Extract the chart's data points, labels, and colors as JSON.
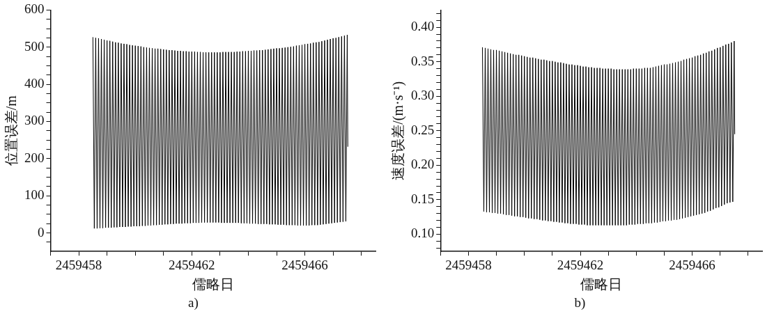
{
  "chart_data": [
    {
      "type": "line",
      "xlabel": "儒略日",
      "ylabel": "位置误差/m",
      "annotations": [
        "a)"
      ],
      "color": "#000000",
      "xlim": [
        2459457,
        2459468.5
      ],
      "xticks": [
        {
          "value": 2459457,
          "label": null
        },
        {
          "value": 2459458,
          "label": "2459458"
        },
        {
          "value": 2459459,
          "label": null
        },
        {
          "value": 2459460,
          "label": null
        },
        {
          "value": 2459461,
          "label": null
        },
        {
          "value": 2459462,
          "label": "2459462"
        },
        {
          "value": 2459463,
          "label": null
        },
        {
          "value": 2459464,
          "label": null
        },
        {
          "value": 2459465,
          "label": null
        },
        {
          "value": 2459466,
          "label": "2459466"
        },
        {
          "value": 2459467,
          "label": null
        },
        {
          "value": 2459468,
          "label": null
        }
      ],
      "ylim": [
        -50,
        600
      ],
      "yticks": [
        {
          "value": -25,
          "label": null
        },
        0,
        {
          "value": 25,
          "label": null
        },
        {
          "value": 50,
          "label": null
        },
        {
          "value": 75,
          "label": null
        },
        100,
        {
          "value": 125,
          "label": null
        },
        {
          "value": 150,
          "label": null
        },
        {
          "value": 175,
          "label": null
        },
        200,
        {
          "value": 225,
          "label": null
        },
        {
          "value": 250,
          "label": null
        },
        {
          "value": 275,
          "label": null
        },
        300,
        {
          "value": 325,
          "label": null
        },
        {
          "value": 350,
          "label": null
        },
        {
          "value": 375,
          "label": null
        },
        400,
        {
          "value": 425,
          "label": null
        },
        {
          "value": 450,
          "label": null
        },
        {
          "value": 475,
          "label": null
        },
        500,
        {
          "value": 525,
          "label": null
        },
        {
          "value": 550,
          "label": null
        },
        {
          "value": 575,
          "label": null
        },
        600
      ],
      "x": [
        2459458.5,
        2459458.55,
        2459458.6,
        2459458.65,
        2459458.7,
        2459458.75,
        2459458.8,
        2459458.85,
        2459458.9,
        2459458.95,
        2459459,
        2459459.05,
        2459459.1,
        2459459.15,
        2459459.2,
        2459459.25,
        2459459.3,
        2459459.35,
        2459459.4,
        2459459.45,
        2459459.5,
        2459459.55,
        2459459.6,
        2459459.65,
        2459459.7,
        2459459.75,
        2459459.8,
        2459459.85,
        2459459.9,
        2459459.95,
        2459460,
        2459460.05,
        2459460.1,
        2459460.15,
        2459460.2,
        2459460.25,
        2459460.3,
        2459460.35,
        2459460.4,
        2459460.45,
        2459460.5,
        2459460.55,
        2459460.6,
        2459460.65,
        2459460.7,
        2459460.75,
        2459460.8,
        2459460.85,
        2459460.9,
        2459460.95,
        2459461,
        2459461.05,
        2459461.1,
        2459461.15,
        2459461.2,
        2459461.25,
        2459461.3,
        2459461.35,
        2459461.4,
        2459461.45,
        2459461.5,
        2459461.55,
        2459461.6,
        2459461.65,
        2459461.7,
        2459461.75,
        2459461.8,
        2459461.85,
        2459461.9,
        2459461.95,
        2459462,
        2459462.05,
        2459462.1,
        2459462.15,
        2459462.2,
        2459462.25,
        2459462.3,
        2459462.35,
        2459462.4,
        2459462.45,
        2459462.5,
        2459462.55,
        2459462.6,
        2459462.65,
        2459462.7,
        2459462.75,
        2459462.8,
        2459462.85,
        2459462.9,
        2459462.95,
        2459463,
        2459463.05,
        2459463.1,
        2459463.15,
        2459463.2,
        2459463.25,
        2459463.3,
        2459463.35,
        2459463.4,
        2459463.45,
        2459463.5,
        2459463.55,
        2459463.6,
        2459463.65,
        2459463.7,
        2459463.75,
        2459463.8,
        2459463.85,
        2459463.9,
        2459463.95,
        2459464,
        2459464.05,
        2459464.1,
        2459464.15,
        2459464.2,
        2459464.25,
        2459464.3,
        2459464.35,
        2459464.4,
        2459464.45,
        2459464.5,
        2459464.55,
        2459464.6,
        2459464.65,
        2459464.7,
        2459464.75,
        2459464.8,
        2459464.85,
        2459464.9,
        2459464.95,
        2459465,
        2459465.05,
        2459465.1,
        2459465.15,
        2459465.2,
        2459465.25,
        2459465.3,
        2459465.35,
        2459465.4,
        2459465.45,
        2459465.5,
        2459465.55,
        2459465.6,
        2459465.65,
        2459465.7,
        2459465.75,
        2459465.8,
        2459465.85,
        2459465.9,
        2459465.95,
        2459466,
        2459466.05,
        2459466.1,
        2459466.15,
        2459466.2,
        2459466.25,
        2459466.3,
        2459466.35,
        2459466.4,
        2459466.45,
        2459466.5,
        2459466.55,
        2459466.6,
        2459466.65,
        2459466.7,
        2459466.75,
        2459466.8,
        2459466.85,
        2459466.9,
        2459466.95,
        2459467,
        2459467.05,
        2459467.1,
        2459467.15,
        2459467.2,
        2459467.25,
        2459467.3,
        2459467.35,
        2459467.4,
        2459467.45,
        2459467.5,
        2459467.52
      ],
      "values": [
        527,
        12,
        525,
        12,
        524,
        13,
        522,
        13,
        520,
        14,
        518,
        14,
        517,
        14,
        515,
        15,
        513,
        15,
        512,
        16,
        510,
        16,
        509,
        16,
        508,
        17,
        506,
        17,
        505,
        18,
        504,
        18,
        503,
        18,
        502,
        19,
        500,
        19,
        499,
        20,
        498,
        20,
        497,
        21,
        496,
        21,
        496,
        22,
        495,
        22,
        494,
        23,
        493,
        23,
        492,
        24,
        492,
        24,
        491,
        25,
        490,
        25,
        490,
        25,
        489,
        26,
        489,
        26,
        488,
        26,
        488,
        27,
        488,
        27,
        487,
        27,
        487,
        28,
        486,
        28,
        486,
        28,
        486,
        28,
        486,
        28,
        486,
        28,
        486,
        28,
        486,
        27,
        487,
        27,
        487,
        27,
        487,
        27,
        487,
        27,
        487,
        27,
        488,
        27,
        488,
        26,
        489,
        26,
        489,
        26,
        490,
        25,
        490,
        25,
        491,
        25,
        491,
        24,
        492,
        24,
        492,
        24,
        493,
        24,
        494,
        23,
        495,
        23,
        496,
        23,
        497,
        22,
        497,
        22,
        498,
        22,
        499,
        21,
        500,
        21,
        501,
        21,
        502,
        21,
        504,
        20,
        505,
        20,
        506,
        20,
        508,
        20,
        509,
        20,
        510,
        21,
        512,
        21,
        513,
        21,
        514,
        22,
        516,
        23,
        518,
        24,
        520,
        25,
        522,
        26,
        524,
        27,
        525,
        28,
        527,
        29,
        529,
        30,
        531,
        31,
        533,
        232
      ]
    },
    {
      "type": "line",
      "xlabel": "儒略日",
      "ylabel": "速度误差/(m·s⁻¹)",
      "annotations": [
        "b)"
      ],
      "color": "#000000",
      "xlim": [
        2459457,
        2459468.5
      ],
      "xticks": [
        {
          "value": 2459457,
          "label": null
        },
        {
          "value": 2459458,
          "label": "2459458"
        },
        {
          "value": 2459459,
          "label": null
        },
        {
          "value": 2459460,
          "label": null
        },
        {
          "value": 2459461,
          "label": null
        },
        {
          "value": 2459462,
          "label": "2459462"
        },
        {
          "value": 2459463,
          "label": null
        },
        {
          "value": 2459464,
          "label": null
        },
        {
          "value": 2459465,
          "label": null
        },
        {
          "value": 2459466,
          "label": "2459466"
        },
        {
          "value": 2459467,
          "label": null
        },
        {
          "value": 2459468,
          "label": null
        }
      ],
      "ylim": [
        0.075,
        0.425
      ],
      "yticks": [
        {
          "value": 0.08,
          "label": null
        },
        {
          "value": 0.09,
          "label": null
        },
        {
          "value": 0.1,
          "label": "0.10"
        },
        {
          "value": 0.11,
          "label": null
        },
        {
          "value": 0.12,
          "label": null
        },
        {
          "value": 0.13,
          "label": null
        },
        {
          "value": 0.14,
          "label": null
        },
        {
          "value": 0.15,
          "label": "0.15"
        },
        {
          "value": 0.16,
          "label": null
        },
        {
          "value": 0.17,
          "label": null
        },
        {
          "value": 0.18,
          "label": null
        },
        {
          "value": 0.19,
          "label": null
        },
        {
          "value": 0.2,
          "label": "0.20"
        },
        {
          "value": 0.21,
          "label": null
        },
        {
          "value": 0.22,
          "label": null
        },
        {
          "value": 0.23,
          "label": null
        },
        {
          "value": 0.24,
          "label": null
        },
        {
          "value": 0.25,
          "label": "0.25"
        },
        {
          "value": 0.26,
          "label": null
        },
        {
          "value": 0.27,
          "label": null
        },
        {
          "value": 0.28,
          "label": null
        },
        {
          "value": 0.29,
          "label": null
        },
        {
          "value": 0.3,
          "label": "0.30"
        },
        {
          "value": 0.31,
          "label": null
        },
        {
          "value": 0.32,
          "label": null
        },
        {
          "value": 0.33,
          "label": null
        },
        {
          "value": 0.34,
          "label": null
        },
        {
          "value": 0.35,
          "label": "0.35"
        },
        {
          "value": 0.36,
          "label": null
        },
        {
          "value": 0.37,
          "label": null
        },
        {
          "value": 0.38,
          "label": null
        },
        {
          "value": 0.39,
          "label": null
        },
        {
          "value": 0.4,
          "label": "0.40"
        },
        {
          "value": 0.41,
          "label": null
        },
        {
          "value": 0.42,
          "label": null
        }
      ],
      "x": [
        2459458.5,
        2459458.55,
        2459458.6,
        2459458.65,
        2459458.7,
        2459458.75,
        2459458.8,
        2459458.85,
        2459458.9,
        2459458.95,
        2459459,
        2459459.05,
        2459459.1,
        2459459.15,
        2459459.2,
        2459459.25,
        2459459.3,
        2459459.35,
        2459459.4,
        2459459.45,
        2459459.5,
        2459459.55,
        2459459.6,
        2459459.65,
        2459459.7,
        2459459.75,
        2459459.8,
        2459459.85,
        2459459.9,
        2459459.95,
        2459460,
        2459460.05,
        2459460.1,
        2459460.15,
        2459460.2,
        2459460.25,
        2459460.3,
        2459460.35,
        2459460.4,
        2459460.45,
        2459460.5,
        2459460.55,
        2459460.6,
        2459460.65,
        2459460.7,
        2459460.75,
        2459460.8,
        2459460.85,
        2459460.9,
        2459460.95,
        2459461,
        2459461.05,
        2459461.1,
        2459461.15,
        2459461.2,
        2459461.25,
        2459461.3,
        2459461.35,
        2459461.4,
        2459461.45,
        2459461.5,
        2459461.55,
        2459461.6,
        2459461.65,
        2459461.7,
        2459461.75,
        2459461.8,
        2459461.85,
        2459461.9,
        2459461.95,
        2459462,
        2459462.05,
        2459462.1,
        2459462.15,
        2459462.2,
        2459462.25,
        2459462.3,
        2459462.35,
        2459462.4,
        2459462.45,
        2459462.5,
        2459462.55,
        2459462.6,
        2459462.65,
        2459462.7,
        2459462.75,
        2459462.8,
        2459462.85,
        2459462.9,
        2459462.95,
        2459463,
        2459463.05,
        2459463.1,
        2459463.15,
        2459463.2,
        2459463.25,
        2459463.3,
        2459463.35,
        2459463.4,
        2459463.45,
        2459463.5,
        2459463.55,
        2459463.6,
        2459463.65,
        2459463.7,
        2459463.75,
        2459463.8,
        2459463.85,
        2459463.9,
        2459463.95,
        2459464,
        2459464.05,
        2459464.1,
        2459464.15,
        2459464.2,
        2459464.25,
        2459464.3,
        2459464.35,
        2459464.4,
        2459464.45,
        2459464.5,
        2459464.55,
        2459464.6,
        2459464.65,
        2459464.7,
        2459464.75,
        2459464.8,
        2459464.85,
        2459464.9,
        2459464.95,
        2459465,
        2459465.05,
        2459465.1,
        2459465.15,
        2459465.2,
        2459465.25,
        2459465.3,
        2459465.35,
        2459465.4,
        2459465.45,
        2459465.5,
        2459465.55,
        2459465.6,
        2459465.65,
        2459465.7,
        2459465.75,
        2459465.8,
        2459465.85,
        2459465.9,
        2459465.95,
        2459466,
        2459466.05,
        2459466.1,
        2459466.15,
        2459466.2,
        2459466.25,
        2459466.3,
        2459466.35,
        2459466.4,
        2459466.45,
        2459466.5,
        2459466.55,
        2459466.6,
        2459466.65,
        2459466.7,
        2459466.75,
        2459466.8,
        2459466.85,
        2459466.9,
        2459466.95,
        2459467,
        2459467.05,
        2459467.1,
        2459467.15,
        2459467.2,
        2459467.25,
        2459467.3,
        2459467.35,
        2459467.4,
        2459467.45,
        2459467.5,
        2459467.52
      ],
      "values": [
        0.371,
        0.133,
        0.37,
        0.132,
        0.369,
        0.132,
        0.368,
        0.131,
        0.367,
        0.131,
        0.367,
        0.13,
        0.366,
        0.13,
        0.365,
        0.129,
        0.364,
        0.128,
        0.363,
        0.128,
        0.362,
        0.127,
        0.361,
        0.126,
        0.36,
        0.126,
        0.36,
        0.125,
        0.359,
        0.125,
        0.358,
        0.124,
        0.357,
        0.123,
        0.356,
        0.123,
        0.356,
        0.122,
        0.355,
        0.122,
        0.354,
        0.121,
        0.353,
        0.12,
        0.353,
        0.12,
        0.352,
        0.119,
        0.351,
        0.119,
        0.351,
        0.118,
        0.35,
        0.118,
        0.349,
        0.117,
        0.349,
        0.117,
        0.348,
        0.116,
        0.347,
        0.116,
        0.346,
        0.115,
        0.346,
        0.115,
        0.345,
        0.115,
        0.345,
        0.114,
        0.344,
        0.114,
        0.343,
        0.114,
        0.343,
        0.113,
        0.342,
        0.113,
        0.342,
        0.113,
        0.341,
        0.113,
        0.341,
        0.113,
        0.341,
        0.113,
        0.34,
        0.113,
        0.34,
        0.113,
        0.34,
        0.113,
        0.34,
        0.113,
        0.339,
        0.113,
        0.339,
        0.113,
        0.339,
        0.113,
        0.339,
        0.113,
        0.339,
        0.113,
        0.339,
        0.114,
        0.339,
        0.114,
        0.34,
        0.114,
        0.34,
        0.115,
        0.34,
        0.115,
        0.34,
        0.115,
        0.341,
        0.116,
        0.341,
        0.116,
        0.341,
        0.116,
        0.342,
        0.117,
        0.343,
        0.117,
        0.344,
        0.118,
        0.345,
        0.119,
        0.346,
        0.119,
        0.346,
        0.12,
        0.347,
        0.12,
        0.348,
        0.121,
        0.349,
        0.121,
        0.35,
        0.122,
        0.351,
        0.123,
        0.353,
        0.124,
        0.354,
        0.125,
        0.355,
        0.126,
        0.356,
        0.127,
        0.358,
        0.128,
        0.359,
        0.129,
        0.36,
        0.13,
        0.362,
        0.131,
        0.363,
        0.133,
        0.365,
        0.134,
        0.366,
        0.136,
        0.368,
        0.138,
        0.37,
        0.139,
        0.371,
        0.141,
        0.373,
        0.143,
        0.375,
        0.145,
        0.376,
        0.146,
        0.378,
        0.147,
        0.38,
        0.245
      ]
    }
  ]
}
